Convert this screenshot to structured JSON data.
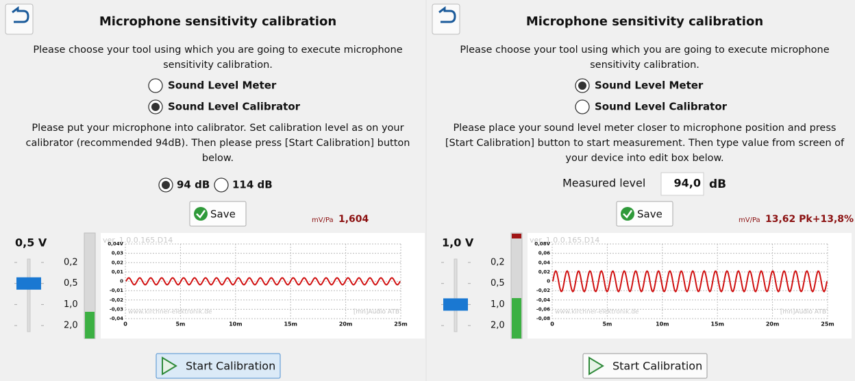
{
  "panels": [
    {
      "title": "Microphone sensitivity calibration",
      "intro": [
        "Please choose your tool using which you are going to execute microphone",
        "sensitivity calibration."
      ],
      "options": [
        {
          "label": "Sound Level Meter",
          "selected": false
        },
        {
          "label": "Sound Level Calibrator",
          "selected": true
        }
      ],
      "instructions": [
        "Please put your microphone into calibrator. Set calibration level as on your",
        "calibrator (recommended 94dB). Then please press [Start Calibration] button",
        "below."
      ],
      "levels": [
        {
          "label": "94 dB",
          "selected": true
        },
        {
          "label": "114 dB",
          "selected": false
        }
      ],
      "save": "Save",
      "sensitivity_unit": "mV/Pa",
      "sensitivity": "1,604",
      "voltage": "0,5 V",
      "gains": [
        {
          "label": "0,2",
          "selected": false
        },
        {
          "label": "0,5",
          "selected": true
        },
        {
          "label": "1,0",
          "selected": false
        },
        {
          "label": "2,0",
          "selected": false
        }
      ],
      "scope": {
        "version": "ver. 1.0.0.165.D14",
        "yticks": [
          "0,04V",
          "0,03",
          "0,02",
          "0,01",
          "0",
          "-0,01",
          "-0,02",
          "-0,03",
          "-0,04"
        ],
        "xticks": [
          "0",
          "5m",
          "10m",
          "15m",
          "20m",
          "25m"
        ],
        "watermark": "www.kirchner-elektronik.de",
        "brand": "[mn]Audio ATB"
      },
      "start": "Start Calibration"
    },
    {
      "title": "Microphone sensitivity calibration",
      "intro": [
        "Please choose your tool using which you are going to execute microphone",
        "sensitivity calibration."
      ],
      "options": [
        {
          "label": "Sound Level Meter",
          "selected": true
        },
        {
          "label": "Sound Level Calibrator",
          "selected": false
        }
      ],
      "instructions": [
        "Please place your sound level meter closer to microphone position and press",
        "[Start Calibration] button to start measurement. Then type value from screen of",
        "your device into edit box below."
      ],
      "measured": {
        "label": "Measured level",
        "value": "94,0",
        "unit": "dB"
      },
      "save": "Save",
      "sensitivity_unit": "mV/Pa",
      "sensitivity": "13,62 Pk+13,8%",
      "voltage": "1,0 V",
      "gains": [
        {
          "label": "0,2",
          "selected": false
        },
        {
          "label": "0,5",
          "selected": false
        },
        {
          "label": "1,0",
          "selected": true
        },
        {
          "label": "2,0",
          "selected": false
        }
      ],
      "scope": {
        "version": "ver. 1.0.0.165.D14",
        "yticks": [
          "0,08V",
          "0,06",
          "0,04",
          "0,02",
          "0",
          "-0,02",
          "-0,04",
          "-0,06",
          "-0,08"
        ],
        "xticks": [
          "0",
          "5m",
          "10m",
          "15m",
          "20m",
          "25m"
        ],
        "watermark": "www.kirchner-elektronik.de",
        "brand": "[mn]Audio ATB"
      },
      "start": "Start Calibration"
    }
  ]
}
